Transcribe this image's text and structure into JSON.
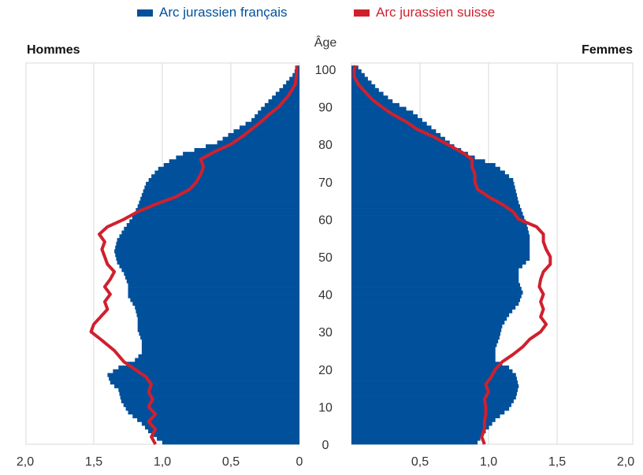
{
  "colors": {
    "francais": "#00509B",
    "suisse": "#D0202E",
    "grid": "#d9d9d9",
    "text": "#333333"
  },
  "chart_data": {
    "type": "bar",
    "subtype": "population-pyramid",
    "panels": {
      "left": "Hommes",
      "right": "Femmes"
    },
    "age_label": "Âge",
    "age_ticks": [
      0,
      10,
      20,
      30,
      40,
      50,
      60,
      70,
      80,
      90,
      100
    ],
    "x_ticks": [
      "2,0",
      "1,5",
      "1,0",
      "0,5",
      "0",
      "0,5",
      "1,0",
      "1,5",
      "2,0"
    ],
    "xlim": [
      0,
      2.0
    ],
    "ylim": [
      0,
      101
    ],
    "grid": true,
    "legend_position": "top",
    "series": [
      {
        "name": "Arc jurassien français",
        "kind": "bars",
        "men_points": [
          [
            0,
            1.0
          ],
          [
            2,
            1.08
          ],
          [
            5,
            1.15
          ],
          [
            8,
            1.25
          ],
          [
            11,
            1.3
          ],
          [
            14,
            1.32
          ],
          [
            16,
            1.38
          ],
          [
            18,
            1.4
          ],
          [
            20,
            1.32
          ],
          [
            22,
            1.2
          ],
          [
            24,
            1.15
          ],
          [
            27,
            1.15
          ],
          [
            30,
            1.18
          ],
          [
            33,
            1.18
          ],
          [
            36,
            1.2
          ],
          [
            39,
            1.25
          ],
          [
            42,
            1.25
          ],
          [
            45,
            1.28
          ],
          [
            48,
            1.33
          ],
          [
            51,
            1.35
          ],
          [
            54,
            1.33
          ],
          [
            57,
            1.28
          ],
          [
            60,
            1.22
          ],
          [
            63,
            1.18
          ],
          [
            66,
            1.15
          ],
          [
            69,
            1.12
          ],
          [
            71,
            1.08
          ],
          [
            73,
            1.03
          ],
          [
            75,
            0.95
          ],
          [
            77,
            0.85
          ],
          [
            80,
            0.6
          ],
          [
            83,
            0.48
          ],
          [
            86,
            0.35
          ],
          [
            89,
            0.28
          ],
          [
            92,
            0.2
          ],
          [
            95,
            0.12
          ],
          [
            98,
            0.05
          ],
          [
            100,
            0.02
          ]
        ],
        "women_points": [
          [
            0,
            0.92
          ],
          [
            3,
            0.98
          ],
          [
            6,
            1.05
          ],
          [
            9,
            1.15
          ],
          [
            12,
            1.2
          ],
          [
            15,
            1.22
          ],
          [
            18,
            1.2
          ],
          [
            20,
            1.15
          ],
          [
            22,
            1.05
          ],
          [
            25,
            1.05
          ],
          [
            28,
            1.08
          ],
          [
            31,
            1.1
          ],
          [
            34,
            1.15
          ],
          [
            37,
            1.22
          ],
          [
            40,
            1.25
          ],
          [
            43,
            1.22
          ],
          [
            46,
            1.22
          ],
          [
            49,
            1.3
          ],
          [
            52,
            1.3
          ],
          [
            55,
            1.3
          ],
          [
            58,
            1.28
          ],
          [
            61,
            1.25
          ],
          [
            64,
            1.22
          ],
          [
            67,
            1.2
          ],
          [
            70,
            1.18
          ],
          [
            72,
            1.12
          ],
          [
            74,
            1.05
          ],
          [
            76,
            0.9
          ],
          [
            79,
            0.75
          ],
          [
            82,
            0.65
          ],
          [
            85,
            0.55
          ],
          [
            88,
            0.45
          ],
          [
            91,
            0.3
          ],
          [
            94,
            0.2
          ],
          [
            97,
            0.12
          ],
          [
            100,
            0.05
          ]
        ]
      },
      {
        "name": "Arc jurassien suisse",
        "kind": "line",
        "men_points": [
          [
            0,
            1.05
          ],
          [
            2,
            1.08
          ],
          [
            4,
            1.05
          ],
          [
            6,
            1.1
          ],
          [
            8,
            1.05
          ],
          [
            10,
            1.1
          ],
          [
            12,
            1.07
          ],
          [
            14,
            1.1
          ],
          [
            16,
            1.08
          ],
          [
            18,
            1.12
          ],
          [
            20,
            1.2
          ],
          [
            22,
            1.28
          ],
          [
            25,
            1.35
          ],
          [
            28,
            1.45
          ],
          [
            30,
            1.52
          ],
          [
            32,
            1.5
          ],
          [
            34,
            1.45
          ],
          [
            36,
            1.4
          ],
          [
            38,
            1.42
          ],
          [
            40,
            1.38
          ],
          [
            42,
            1.42
          ],
          [
            44,
            1.38
          ],
          [
            46,
            1.35
          ],
          [
            48,
            1.4
          ],
          [
            50,
            1.42
          ],
          [
            52,
            1.44
          ],
          [
            54,
            1.42
          ],
          [
            56,
            1.46
          ],
          [
            58,
            1.4
          ],
          [
            60,
            1.28
          ],
          [
            62,
            1.18
          ],
          [
            64,
            1.05
          ],
          [
            66,
            0.9
          ],
          [
            68,
            0.8
          ],
          [
            70,
            0.75
          ],
          [
            72,
            0.72
          ],
          [
            74,
            0.7
          ],
          [
            76,
            0.72
          ],
          [
            78,
            0.62
          ],
          [
            80,
            0.5
          ],
          [
            82,
            0.42
          ],
          [
            84,
            0.35
          ],
          [
            86,
            0.28
          ],
          [
            88,
            0.22
          ],
          [
            90,
            0.15
          ],
          [
            93,
            0.08
          ],
          [
            96,
            0.03
          ],
          [
            99,
            0.02
          ],
          [
            101,
            0.02
          ]
        ],
        "women_points": [
          [
            0,
            0.97
          ],
          [
            2,
            0.95
          ],
          [
            4,
            0.97
          ],
          [
            6,
            0.97
          ],
          [
            8,
            0.98
          ],
          [
            10,
            0.98
          ],
          [
            12,
            0.97
          ],
          [
            14,
            1.0
          ],
          [
            16,
            0.98
          ],
          [
            18,
            1.02
          ],
          [
            20,
            1.05
          ],
          [
            22,
            1.1
          ],
          [
            24,
            1.18
          ],
          [
            26,
            1.25
          ],
          [
            28,
            1.3
          ],
          [
            30,
            1.38
          ],
          [
            32,
            1.42
          ],
          [
            34,
            1.38
          ],
          [
            36,
            1.4
          ],
          [
            38,
            1.38
          ],
          [
            40,
            1.4
          ],
          [
            42,
            1.37
          ],
          [
            44,
            1.38
          ],
          [
            46,
            1.4
          ],
          [
            48,
            1.45
          ],
          [
            50,
            1.45
          ],
          [
            52,
            1.42
          ],
          [
            54,
            1.4
          ],
          [
            56,
            1.4
          ],
          [
            58,
            1.35
          ],
          [
            60,
            1.22
          ],
          [
            62,
            1.18
          ],
          [
            64,
            1.1
          ],
          [
            66,
            1.0
          ],
          [
            68,
            0.92
          ],
          [
            70,
            0.9
          ],
          [
            72,
            0.9
          ],
          [
            74,
            0.88
          ],
          [
            76,
            0.88
          ],
          [
            78,
            0.8
          ],
          [
            80,
            0.7
          ],
          [
            82,
            0.6
          ],
          [
            84,
            0.48
          ],
          [
            86,
            0.4
          ],
          [
            88,
            0.3
          ],
          [
            90,
            0.22
          ],
          [
            92,
            0.15
          ],
          [
            94,
            0.1
          ],
          [
            96,
            0.05
          ],
          [
            98,
            0.02
          ],
          [
            100,
            0.02
          ],
          [
            101,
            0.03
          ]
        ]
      }
    ]
  }
}
